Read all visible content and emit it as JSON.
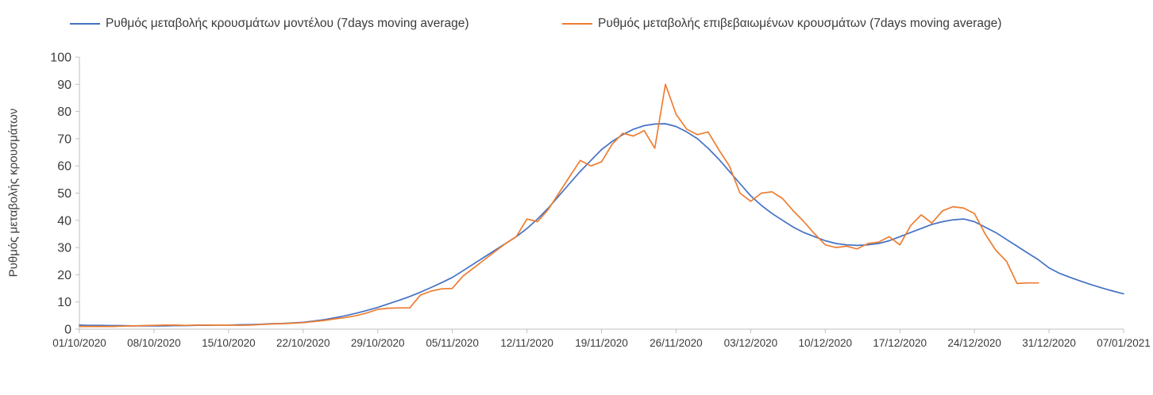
{
  "chart_data": {
    "type": "line",
    "title": "",
    "ylabel": "Ρυθμός μεταβολής κρουσμάτων",
    "xlabel": "",
    "ylim": [
      0,
      100
    ],
    "yticks": [
      0,
      10,
      20,
      30,
      40,
      50,
      60,
      70,
      80,
      90,
      100
    ],
    "x_tick_labels": [
      "01/10/2020",
      "08/10/2020",
      "15/10/2020",
      "22/10/2020",
      "29/10/2020",
      "05/11/2020",
      "12/11/2020",
      "19/11/2020",
      "26/11/2020",
      "03/12/2020",
      "10/12/2020",
      "17/12/2020",
      "24/12/2020",
      "31/12/2020",
      "07/01/2021"
    ],
    "x_tick_days": [
      0,
      7,
      14,
      21,
      28,
      35,
      42,
      49,
      56,
      63,
      70,
      77,
      84,
      91,
      98
    ],
    "x_total_days": 98,
    "grid": false,
    "legend_position": "top",
    "axis_color": "#bfbfbf",
    "text_color": "#3b3b3b",
    "series": [
      {
        "name": "Ρυθμός μεταβολής κρουσμάτων μοντέλου (7days moving average)",
        "color": "#4472c4",
        "start_day": 0,
        "values": [
          1.5,
          1.4,
          1.4,
          1.3,
          1.3,
          1.2,
          1.2,
          1.2,
          1.2,
          1.3,
          1.3,
          1.4,
          1.4,
          1.5,
          1.5,
          1.6,
          1.7,
          1.8,
          2.0,
          2.1,
          2.3,
          2.5,
          3.0,
          3.5,
          4.2,
          5.0,
          5.9,
          6.9,
          8.0,
          9.3,
          10.6,
          12.0,
          13.6,
          15.3,
          17.1,
          19.0,
          21.5,
          24.0,
          26.5,
          29.0,
          31.5,
          34.0,
          37.0,
          40.5,
          44.5,
          49.0,
          53.5,
          58.0,
          62.0,
          66.0,
          69.0,
          71.5,
          73.5,
          74.8,
          75.4,
          75.5,
          74.5,
          72.5,
          70.0,
          66.5,
          62.5,
          58.0,
          53.5,
          49.0,
          45.5,
          42.5,
          40.0,
          37.5,
          35.5,
          34.0,
          32.5,
          31.5,
          31.0,
          30.8,
          31.0,
          31.5,
          32.5,
          34.0,
          35.5,
          37.0,
          38.5,
          39.5,
          40.2,
          40.5,
          39.5,
          37.5,
          35.5,
          33.0,
          30.5,
          28.0,
          25.5,
          22.5,
          20.5,
          19.0,
          17.6,
          16.3,
          15.1,
          14.0,
          13.0
        ]
      },
      {
        "name": "Ρυθμός μεταβολής επιβεβαιωμένων κρουσμάτων (7days moving average)",
        "color": "#ed7d31",
        "start_day": 0,
        "values": [
          1.0,
          1.0,
          1.0,
          1.0,
          1.1,
          1.2,
          1.3,
          1.4,
          1.5,
          1.5,
          1.4,
          1.5,
          1.5,
          1.5,
          1.5,
          1.4,
          1.5,
          1.7,
          1.9,
          2.0,
          2.2,
          2.4,
          2.8,
          3.2,
          3.8,
          4.3,
          5.0,
          6.0,
          7.3,
          7.7,
          7.8,
          7.8,
          12.5,
          14.0,
          14.8,
          15.0,
          19.5,
          22.5,
          25.5,
          28.5,
          31.5,
          34.0,
          40.5,
          39.5,
          44.0,
          50.0,
          56.0,
          62.0,
          60.0,
          61.5,
          68.0,
          72.0,
          71.0,
          73.0,
          66.5,
          90.0,
          79.0,
          73.5,
          71.5,
          72.5,
          66.0,
          60.0,
          50.0,
          47.0,
          50.0,
          50.5,
          48.0,
          43.5,
          39.5,
          35.0,
          31.0,
          30.0,
          30.5,
          29.5,
          31.5,
          32.0,
          34.0,
          31.0,
          38.0,
          42.0,
          39.0,
          43.5,
          45.0,
          44.5,
          42.5,
          35.0,
          29.0,
          25.0,
          16.8,
          17.0,
          17.0
        ]
      }
    ]
  }
}
